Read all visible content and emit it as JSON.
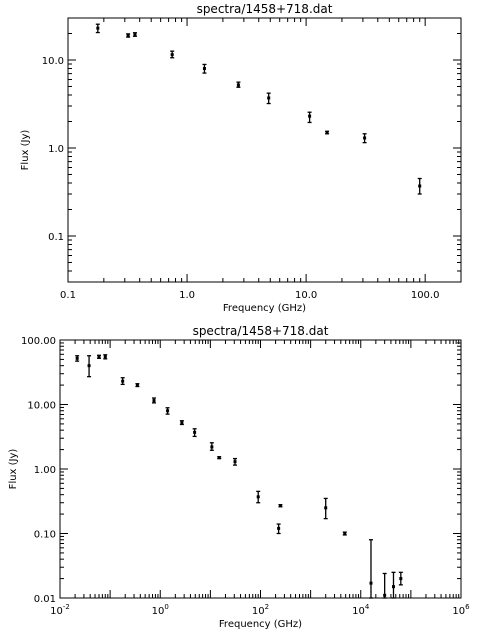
{
  "chart_data": [
    {
      "type": "scatter",
      "title": "spectra/1458+718.dat",
      "xlabel": "Frequency (GHz)",
      "ylabel": "Flux (Jy)",
      "xscale": "log",
      "yscale": "log",
      "xlim": [
        0.1,
        200
      ],
      "ylim": [
        0.03,
        30
      ],
      "grid": false,
      "xticks": [
        0.1,
        1.0,
        10.0,
        100.0
      ],
      "xtick_labels": [
        "0.1",
        "1.0",
        "10.0",
        "100.0"
      ],
      "yticks": [
        0.1,
        1.0,
        10.0
      ],
      "ytick_labels": [
        "0.1",
        "1.0",
        "10.0"
      ],
      "points": [
        {
          "x": 0.178,
          "y": 23.0,
          "ylo": 20.5,
          "yhi": 25.5
        },
        {
          "x": 0.32,
          "y": 19.0,
          "ylo": 18.2,
          "yhi": 19.8
        },
        {
          "x": 0.365,
          "y": 19.5,
          "ylo": 18.6,
          "yhi": 20.4
        },
        {
          "x": 0.75,
          "y": 11.5,
          "ylo": 10.6,
          "yhi": 12.6
        },
        {
          "x": 1.4,
          "y": 8.0,
          "ylo": 7.1,
          "yhi": 8.9
        },
        {
          "x": 2.7,
          "y": 5.2,
          "ylo": 4.9,
          "yhi": 5.6
        },
        {
          "x": 4.85,
          "y": 3.7,
          "ylo": 3.2,
          "yhi": 4.2
        },
        {
          "x": 10.7,
          "y": 2.3,
          "ylo": 1.95,
          "yhi": 2.55
        },
        {
          "x": 15.0,
          "y": 1.5,
          "ylo": 1.45,
          "yhi": 1.55
        },
        {
          "x": 31.0,
          "y": 1.3,
          "ylo": 1.15,
          "yhi": 1.45
        },
        {
          "x": 90.0,
          "y": 0.37,
          "ylo": 0.3,
          "yhi": 0.45
        }
      ]
    },
    {
      "type": "scatter",
      "title": "spectra/1458+718.dat",
      "xlabel": "Frequency (GHz)",
      "ylabel": "Flux (Jy)",
      "xscale": "log",
      "yscale": "log",
      "xlim": [
        0.01,
        1000000
      ],
      "ylim": [
        0.01,
        100
      ],
      "grid": false,
      "xticks": [
        0.01,
        1,
        100,
        10000,
        1000000
      ],
      "xtick_labels": [
        [
          "10",
          "-2"
        ],
        [
          "10",
          "0"
        ],
        [
          "10",
          "2"
        ],
        [
          "10",
          "4"
        ],
        [
          "10",
          "6"
        ]
      ],
      "yticks": [
        0.01,
        0.1,
        1,
        10,
        100
      ],
      "ytick_labels": [
        "0.01",
        "0.10",
        "1.00",
        "10.00",
        "100.00"
      ],
      "points": [
        {
          "x": 0.022,
          "y": 52,
          "ylo": 47,
          "yhi": 57
        },
        {
          "x": 0.038,
          "y": 40,
          "ylo": 27,
          "yhi": 57
        },
        {
          "x": 0.06,
          "y": 55,
          "ylo": 52,
          "yhi": 58
        },
        {
          "x": 0.08,
          "y": 55,
          "ylo": 51,
          "yhi": 59
        },
        {
          "x": 0.178,
          "y": 23.0,
          "ylo": 20.5,
          "yhi": 26
        },
        {
          "x": 0.35,
          "y": 20,
          "ylo": 19,
          "yhi": 21
        },
        {
          "x": 0.75,
          "y": 11.5,
          "ylo": 10.6,
          "yhi": 12.6
        },
        {
          "x": 1.4,
          "y": 8.0,
          "ylo": 7.1,
          "yhi": 8.9
        },
        {
          "x": 2.7,
          "y": 5.2,
          "ylo": 4.9,
          "yhi": 5.6
        },
        {
          "x": 4.85,
          "y": 3.7,
          "ylo": 3.2,
          "yhi": 4.2
        },
        {
          "x": 10.7,
          "y": 2.2,
          "ylo": 1.95,
          "yhi": 2.55
        },
        {
          "x": 15.0,
          "y": 1.5,
          "ylo": 1.45,
          "yhi": 1.55
        },
        {
          "x": 31.0,
          "y": 1.3,
          "ylo": 1.15,
          "yhi": 1.45
        },
        {
          "x": 90.0,
          "y": 0.37,
          "ylo": 0.3,
          "yhi": 0.45
        },
        {
          "x": 230,
          "y": 0.12,
          "ylo": 0.1,
          "yhi": 0.14
        },
        {
          "x": 250,
          "y": 0.27,
          "ylo": 0.26,
          "yhi": 0.28
        },
        {
          "x": 2000,
          "y": 0.25,
          "ylo": 0.17,
          "yhi": 0.35
        },
        {
          "x": 4800,
          "y": 0.1,
          "ylo": 0.095,
          "yhi": 0.105
        },
        {
          "x": 16000,
          "y": 0.017,
          "ylo": 0.01,
          "yhi": 0.08
        },
        {
          "x": 30000,
          "y": 0.011,
          "ylo": 0.01,
          "yhi": 0.024
        },
        {
          "x": 45000,
          "y": 0.015,
          "ylo": 0.01,
          "yhi": 0.025
        },
        {
          "x": 63000,
          "y": 0.02,
          "ylo": 0.016,
          "yhi": 0.025
        }
      ]
    }
  ]
}
